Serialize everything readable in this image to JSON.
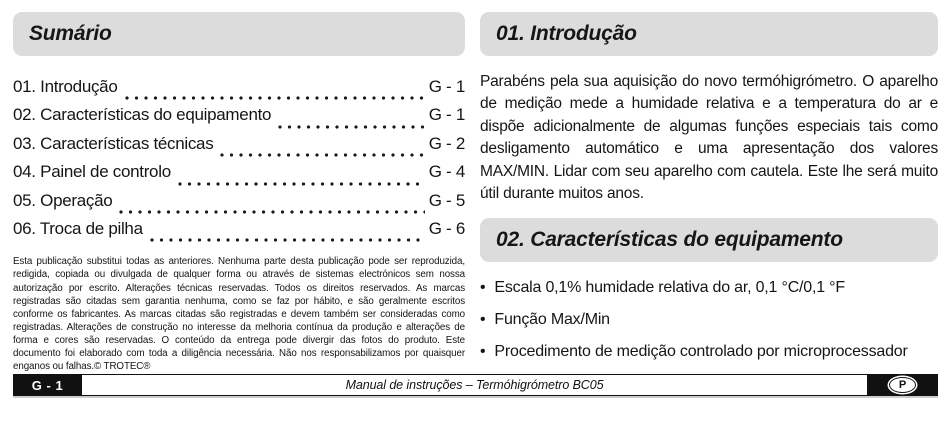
{
  "document": {
    "left": {
      "title": "Sumário",
      "toc": [
        {
          "label": "01. Introdução",
          "page": "G - 1"
        },
        {
          "label": "02. Características do equipamento",
          "page": "G - 1"
        },
        {
          "label": "03. Características técnicas",
          "page": "G - 2"
        },
        {
          "label": "04. Painel de controlo",
          "page": "G - 4"
        },
        {
          "label": "05. Operação",
          "page": "G - 5"
        },
        {
          "label": "06. Troca de pilha",
          "page": "G - 6"
        }
      ],
      "legal": "Esta publicação substitui todas as anteriores. Nenhuma parte desta publicação pode ser reproduzida, redigida, copiada ou divulgada de qualquer forma ou através de sistemas electrónicos sem nossa autorização por escrito. Alterações técnicas reservadas. Todos os direitos reservados. As marcas registradas são citadas sem garantia nenhuma, como se faz por hábito, e são geralmente escritos conforme os fabricantes. As marcas citadas são registradas e devem também ser consideradas como registradas. Alterações de construção no interesse da melhoria contínua da produção e alterações de forma e cores são reservadas. O conteúdo da entrega pode divergir das fotos do produto. Este documento foi elaborado com toda a diligência necessária. Não nos responsabilizamos por quaisquer enganos ou falhas.© TROTEC®"
    },
    "right": {
      "intro_title": "01. Introdução",
      "intro_paragraph": "Parabéns pela sua aquisição do novo termóhigrómetro. O aparelho de medição mede a humidade relativa e a temperatura do ar e dispõe adicionalmente de algumas funções especiais tais como desligamento automático e uma apresentação dos valores MAX/MIN. Lidar com seu aparelho com cautela. Este lhe será muito útil durante muitos anos.",
      "features_title": "02. Características do equipamento",
      "bullets": [
        "Escala 0,1% humidade relativa do ar, 0,1 °C/0,1 °F",
        "Função Max/Min",
        "Procedimento de medição controlado por microprocessador"
      ]
    },
    "footer": {
      "page_ref": "G - 1",
      "bar_title": "Manual de instruções – Termóhigrómetro BC05",
      "language_letter": "P"
    },
    "bullet_char": "•",
    "colors": {
      "heading_bg": "#dcdcdc",
      "text": "#1a1a1a",
      "footer_bg": "#111111"
    }
  }
}
